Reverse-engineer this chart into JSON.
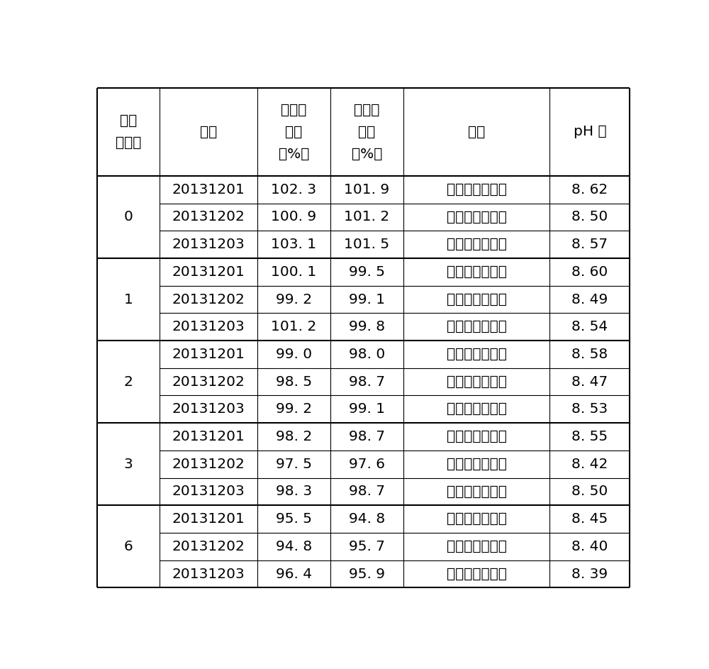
{
  "col_labels": [
    "时间\n（月）",
    "批号",
    "土霉素\n含量\n（%）",
    "酮洛芬\n含量\n（%）",
    "性状",
    "pH 值"
  ],
  "groups": [
    {
      "time": "0",
      "rows": [
        [
          "20131201",
          "102. 3",
          "101. 9",
          "琥珀色澄明液体",
          "8. 62"
        ],
        [
          "20131202",
          "100. 9",
          "101. 2",
          "琥珀色澄明液体",
          "8. 50"
        ],
        [
          "20131203",
          "103. 1",
          "101. 5",
          "琥珀色澄明液体",
          "8. 57"
        ]
      ]
    },
    {
      "time": "1",
      "rows": [
        [
          "20131201",
          "100. 1",
          "99. 5",
          "琥珀色澄明液体",
          "8. 60"
        ],
        [
          "20131202",
          "99. 2",
          "99. 1",
          "琥珀色澄明液体",
          "8. 49"
        ],
        [
          "20131203",
          "101. 2",
          "99. 8",
          "琥珀色澄明液体",
          "8. 54"
        ]
      ]
    },
    {
      "time": "2",
      "rows": [
        [
          "20131201",
          "99. 0",
          "98. 0",
          "琥珀色澄明液体",
          "8. 58"
        ],
        [
          "20131202",
          "98. 5",
          "98. 7",
          "琥珀色澄明液体",
          "8. 47"
        ],
        [
          "20131203",
          "99. 2",
          "99. 1",
          "琥珀色澄明液体",
          "8. 53"
        ]
      ]
    },
    {
      "time": "3",
      "rows": [
        [
          "20131201",
          "98. 2",
          "98. 7",
          "琥珀色澄明液体",
          "8. 55"
        ],
        [
          "20131202",
          "97. 5",
          "97. 6",
          "琥珀色澄明液体",
          "8. 42"
        ],
        [
          "20131203",
          "98. 3",
          "98. 7",
          "琥珀色澄明液体",
          "8. 50"
        ]
      ]
    },
    {
      "time": "6",
      "rows": [
        [
          "20131201",
          "95. 5",
          "94. 8",
          "琥珀色澄明液体",
          "8. 45"
        ],
        [
          "20131202",
          "94. 8",
          "95. 7",
          "琥珀色澄明液体",
          "8. 40"
        ],
        [
          "20131203",
          "96. 4",
          "95. 9",
          "琥珀色澄明液体",
          "8. 39"
        ]
      ]
    }
  ],
  "bg_color": "#ffffff",
  "line_color": "#000000",
  "text_color": "#000000"
}
